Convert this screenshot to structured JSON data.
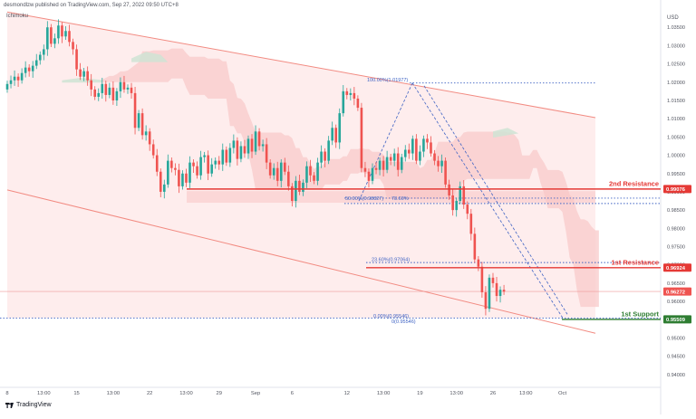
{
  "header": {
    "publisher_line": "desmondlzw published on TradingView.com, Sep 27, 2022 09:50 UTC+8",
    "indicator_label": "Ichimoku",
    "currency_label": "USD",
    "brand": "TradingView"
  },
  "colors": {
    "bull": "#26a69a",
    "bear": "#ef5350",
    "resistance": "#e53935",
    "support": "#2e7d32",
    "channel": "#f28b82",
    "fib": "#3f63c4",
    "cloud": "#f8c9c9",
    "background": "#ffffff"
  },
  "chart_data": {
    "type": "candlestick",
    "title": "",
    "ylim": [
      0.9365,
      1.0405
    ],
    "y_ticks": [
      "1.03500",
      "1.03000",
      "1.02500",
      "1.02000",
      "1.01500",
      "1.01000",
      "1.00500",
      "1.00000",
      "0.99500",
      "0.99000",
      "0.98500",
      "0.98000",
      "0.97500",
      "0.97000",
      "0.96500",
      "0.96000",
      "0.95500",
      "0.95000",
      "0.94500",
      "0.94000"
    ],
    "x_ticks": [
      {
        "label": "8",
        "index": 0
      },
      {
        "label": "13:00",
        "index": 10
      },
      {
        "label": "15",
        "index": 19
      },
      {
        "label": "13:00",
        "index": 29
      },
      {
        "label": "22",
        "index": 39
      },
      {
        "label": "13:00",
        "index": 49
      },
      {
        "label": "29",
        "index": 58
      },
      {
        "label": "Sep",
        "index": 68
      },
      {
        "label": "6",
        "index": 78
      },
      {
        "label": "12",
        "index": 93
      },
      {
        "label": "13:00",
        "index": 103
      },
      {
        "label": "19",
        "index": 113
      },
      {
        "label": "13:00",
        "index": 123
      },
      {
        "label": "26",
        "index": 133
      },
      {
        "label": "13:00",
        "index": 142
      },
      {
        "label": "Oct",
        "index": 152
      }
    ],
    "close": [
      1.0195,
      1.0205,
      1.0215,
      1.0205,
      1.0225,
      1.024,
      1.023,
      1.0245,
      1.026,
      1.0275,
      1.029,
      1.035,
      1.0305,
      1.032,
      1.0355,
      1.0325,
      1.034,
      1.031,
      1.029,
      1.0235,
      1.0215,
      1.023,
      1.0205,
      1.018,
      1.016,
      1.017,
      1.0195,
      1.0165,
      1.0185,
      1.015,
      1.0175,
      1.02,
      1.018,
      1.0185,
      1.017,
      1.0075,
      1.0115,
      1.0055,
      1.0065,
      1.003,
      1.0,
      0.9955,
      0.99,
      0.992,
      0.9985,
      0.9965,
      0.996,
      0.9915,
      0.995,
      0.9925,
      0.998,
      0.997,
      0.9945,
      0.9995,
      1.0,
      0.995,
      0.9975,
      0.9985,
      0.9975,
      1.0015,
      0.998,
      1.002,
      1.004,
      0.999,
      1.0025,
      1.0005,
      1.0045,
      1.001,
      1.0065,
      1.0025,
      1.003,
      0.998,
      0.9945,
      0.9965,
      0.993,
      0.998,
      0.9955,
      0.9915,
      0.9875,
      0.993,
      0.99,
      0.9925,
      0.997,
      0.9945,
      0.993,
      0.998,
      1.001,
      0.9985,
      1.004,
      1.0075,
      1.0035,
      1.0115,
      1.0175,
      1.0165,
      1.017,
      1.0155,
      1.013,
      0.9965,
      0.9955,
      0.993,
      0.9965,
      0.996,
      0.9985,
      0.996,
      0.9995,
      0.9985,
      1.0005,
      0.996,
      0.9995,
      1.0015,
      1.0005,
      1.0045,
      0.9985,
      1.001,
      1.0045,
      1.0035,
      1.0005,
      0.9985,
      0.997,
      0.9985,
      0.992,
      0.989,
      0.985,
      0.9875,
      0.9915,
      0.9865,
      0.984,
      0.9785,
      0.9715,
      0.9695,
      0.9625,
      0.958,
      0.9665,
      0.965,
      0.9615,
      0.9632,
      0.9627
    ],
    "labels": {
      "resistance_2": "2nd Resistance",
      "resistance_1": "1st Resistance",
      "support_1": "1st Support",
      "fib_100": "100.00%(1.01977)",
      "fib_50": "50.00%(0.98827)",
      "fib_50b": "78.60%",
      "fib_236": "23.60%(0.97064)",
      "fib_0": "0.00%(0.95546)",
      "fib_0b": "0(0.95546)"
    },
    "levels": {
      "resistance_2": 0.99076,
      "resistance_1": 0.96924,
      "support_1": 0.95509,
      "fib_100": 1.01977,
      "fib_50": 0.98827,
      "fib_236": 0.97064,
      "fib_0": 0.95546,
      "last_price": 0.96272
    },
    "price_tags": {
      "resistance_2": "0.99076",
      "resistance_1": "0.96924",
      "last_price": "0.96272",
      "support_1": "0.95509"
    }
  }
}
